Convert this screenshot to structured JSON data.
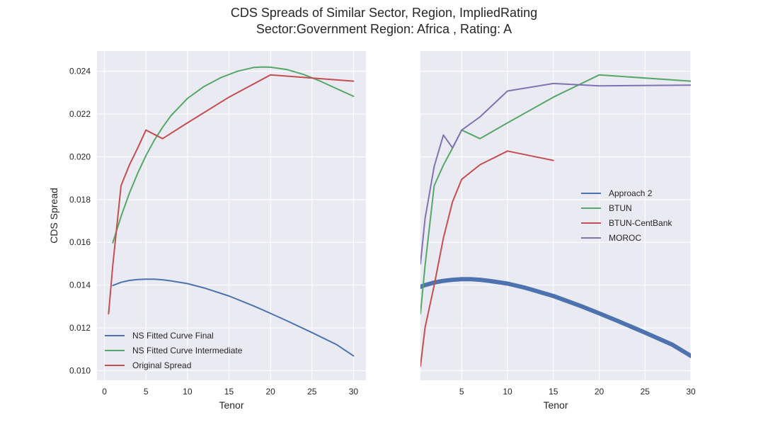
{
  "figure": {
    "title_line1": "CDS Spreads of Similar Sector, Region, ImpliedRating",
    "title_line2": "Sector:Government Region: Africa , Rating: A"
  },
  "colors": {
    "background": "#eaeaf2",
    "grid": "#ffffff",
    "blue": "#4c72b0",
    "green": "#55a868",
    "red": "#c44e52",
    "purple": "#8172b2",
    "text": "#262626"
  },
  "chart_data": [
    {
      "type": "line",
      "title": "",
      "xlabel": "Tenor",
      "ylabel": "CDS Spread",
      "xlim": [
        -0.9,
        31.5
      ],
      "ylim": [
        0.00955,
        0.02495
      ],
      "xticks": [
        0,
        5,
        10,
        15,
        20,
        25,
        30
      ],
      "xtick_labels": [
        "0",
        "5",
        "10",
        "15",
        "20",
        "25",
        "30"
      ],
      "yticks": [
        0.01,
        0.012,
        0.014,
        0.016,
        0.018,
        0.02,
        0.022,
        0.024
      ],
      "ytick_labels": [
        "0.010",
        "0.012",
        "0.014",
        "0.016",
        "0.018",
        "0.020",
        "0.022",
        "0.024"
      ],
      "grid": true,
      "legend_position": "lower-left",
      "series": [
        {
          "name": "NS Fitted Curve Final",
          "color": "#4c72b0",
          "x": [
            1,
            2,
            3,
            4,
            5,
            6,
            7,
            8,
            10,
            12,
            15,
            18,
            20,
            22,
            25,
            28,
            30
          ],
          "y": [
            0.01398,
            0.01413,
            0.01422,
            0.01426,
            0.01428,
            0.01428,
            0.01425,
            0.0142,
            0.01407,
            0.01387,
            0.01349,
            0.01302,
            0.01268,
            0.01233,
            0.01178,
            0.01121,
            0.01069
          ]
        },
        {
          "name": "NS Fitted Curve Intermediate",
          "color": "#55a868",
          "x": [
            1,
            2,
            3,
            4,
            5,
            6,
            7,
            8,
            10,
            12,
            14,
            16,
            18,
            19,
            20,
            22,
            24,
            26,
            28,
            30
          ],
          "y": [
            0.01598,
            0.01721,
            0.01829,
            0.01923,
            0.02006,
            0.02077,
            0.02138,
            0.02192,
            0.02273,
            0.02329,
            0.0237,
            0.024,
            0.02418,
            0.0242,
            0.02419,
            0.02408,
            0.02385,
            0.02354,
            0.02318,
            0.02283
          ]
        },
        {
          "name": "Original Spread",
          "color": "#c44e52",
          "x": [
            0.5,
            1,
            2,
            3,
            4,
            5,
            7,
            10,
            15,
            20,
            30
          ],
          "y": [
            0.01266,
            0.01491,
            0.01865,
            0.01961,
            0.02041,
            0.02125,
            0.02085,
            0.02159,
            0.02279,
            0.02383,
            0.02354
          ]
        }
      ]
    },
    {
      "type": "line",
      "title": "",
      "xlabel": "Tenor",
      "ylabel": "",
      "xlim": [
        0.5,
        30
      ],
      "ylim": [
        0.00955,
        0.02495
      ],
      "xticks": [
        5,
        10,
        15,
        20,
        25,
        30
      ],
      "xtick_labels": [
        "5",
        "10",
        "15",
        "20",
        "25",
        "30"
      ],
      "yticks": [
        0.01,
        0.012,
        0.014,
        0.016,
        0.018,
        0.02,
        0.022,
        0.024
      ],
      "grid": true,
      "legend_position": "center-right",
      "series": [
        {
          "name": "Approach 2",
          "color": "#4c72b0",
          "thick": true,
          "x": [
            0.5,
            1,
            2,
            3,
            4,
            5,
            6,
            7,
            8,
            10,
            12,
            15,
            18,
            20,
            22,
            25,
            28,
            30
          ],
          "y": [
            0.01392,
            0.014,
            0.01412,
            0.0142,
            0.01425,
            0.01428,
            0.01428,
            0.01425,
            0.0142,
            0.01407,
            0.01387,
            0.01349,
            0.01302,
            0.01268,
            0.01233,
            0.01178,
            0.01121,
            0.01069
          ]
        },
        {
          "name": "BTUN",
          "color": "#55a868",
          "x": [
            0.5,
            1,
            2,
            3,
            4,
            5,
            7,
            10,
            15,
            20,
            30
          ],
          "y": [
            0.01266,
            0.01491,
            0.01865,
            0.01961,
            0.02041,
            0.02125,
            0.02085,
            0.02159,
            0.02279,
            0.02383,
            0.02354
          ]
        },
        {
          "name": "BTUN-CentBank",
          "color": "#c44e52",
          "x": [
            0.5,
            1,
            2,
            3,
            4,
            5,
            7,
            10,
            15
          ],
          "y": [
            0.01021,
            0.01201,
            0.01399,
            0.0162,
            0.0179,
            0.01895,
            0.01963,
            0.02027,
            0.01983
          ]
        },
        {
          "name": "MOROC",
          "color": "#8172b2",
          "x": [
            0.5,
            1,
            2,
            3,
            4,
            5,
            7,
            10,
            15,
            20,
            30
          ],
          "y": [
            0.015,
            0.01711,
            0.01955,
            0.02102,
            0.02042,
            0.02125,
            0.02187,
            0.02308,
            0.02343,
            0.02332,
            0.02335
          ]
        }
      ]
    }
  ]
}
